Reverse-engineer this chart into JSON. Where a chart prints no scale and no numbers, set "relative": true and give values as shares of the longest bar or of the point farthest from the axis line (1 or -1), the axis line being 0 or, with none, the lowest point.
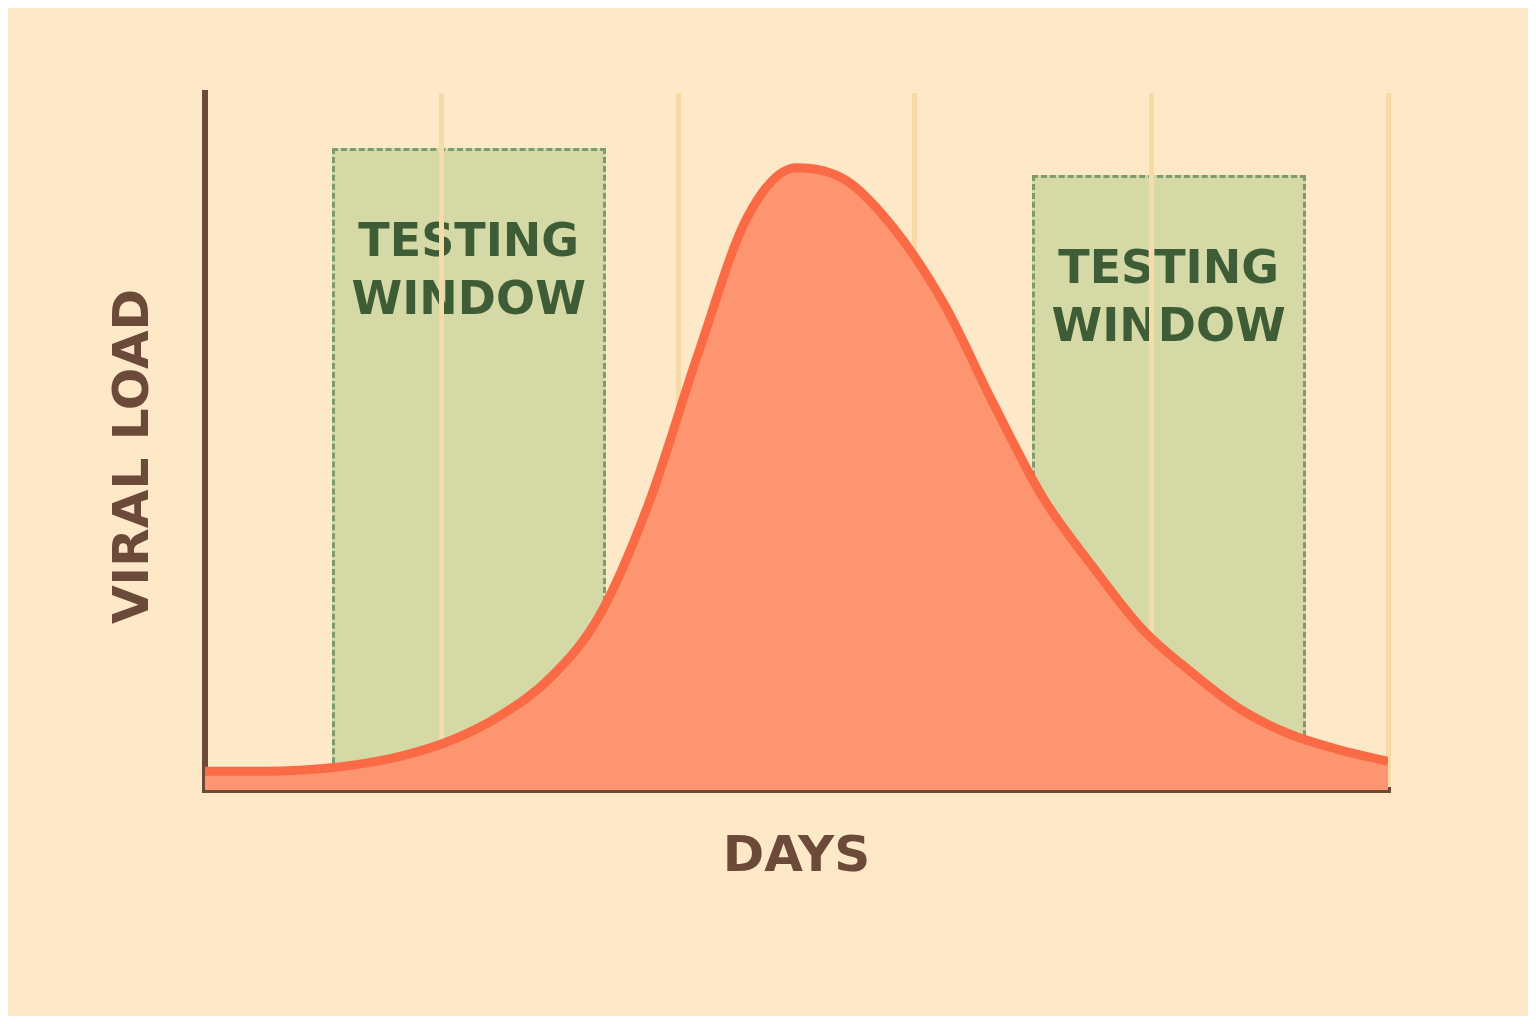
{
  "chart_data": {
    "type": "area",
    "xlabel": "DAYS",
    "ylabel": "VIRAL LOAD",
    "relative": true,
    "grid": "x",
    "legend": false,
    "tick_labels": false,
    "categories": [
      null,
      null,
      null,
      null,
      null,
      null,
      null,
      null,
      null,
      null,
      null,
      null,
      null,
      null,
      null,
      null,
      null,
      null,
      null,
      null,
      null,
      null,
      null,
      null,
      null
    ],
    "series": [
      {
        "color": "#f96a45",
        "values": [
          0.03,
          0.03,
          0.032,
          0.04,
          0.055,
          0.08,
          0.12,
          0.18,
          0.28,
          0.46,
          0.7,
          0.92,
          1.0,
          0.98,
          0.9,
          0.78,
          0.62,
          0.47,
          0.36,
          0.26,
          0.19,
          0.13,
          0.09,
          0.065,
          0.046
        ]
      }
    ],
    "annotations": [
      "TESTING WINDOW",
      "TESTING WINDOW"
    ]
  }
}
